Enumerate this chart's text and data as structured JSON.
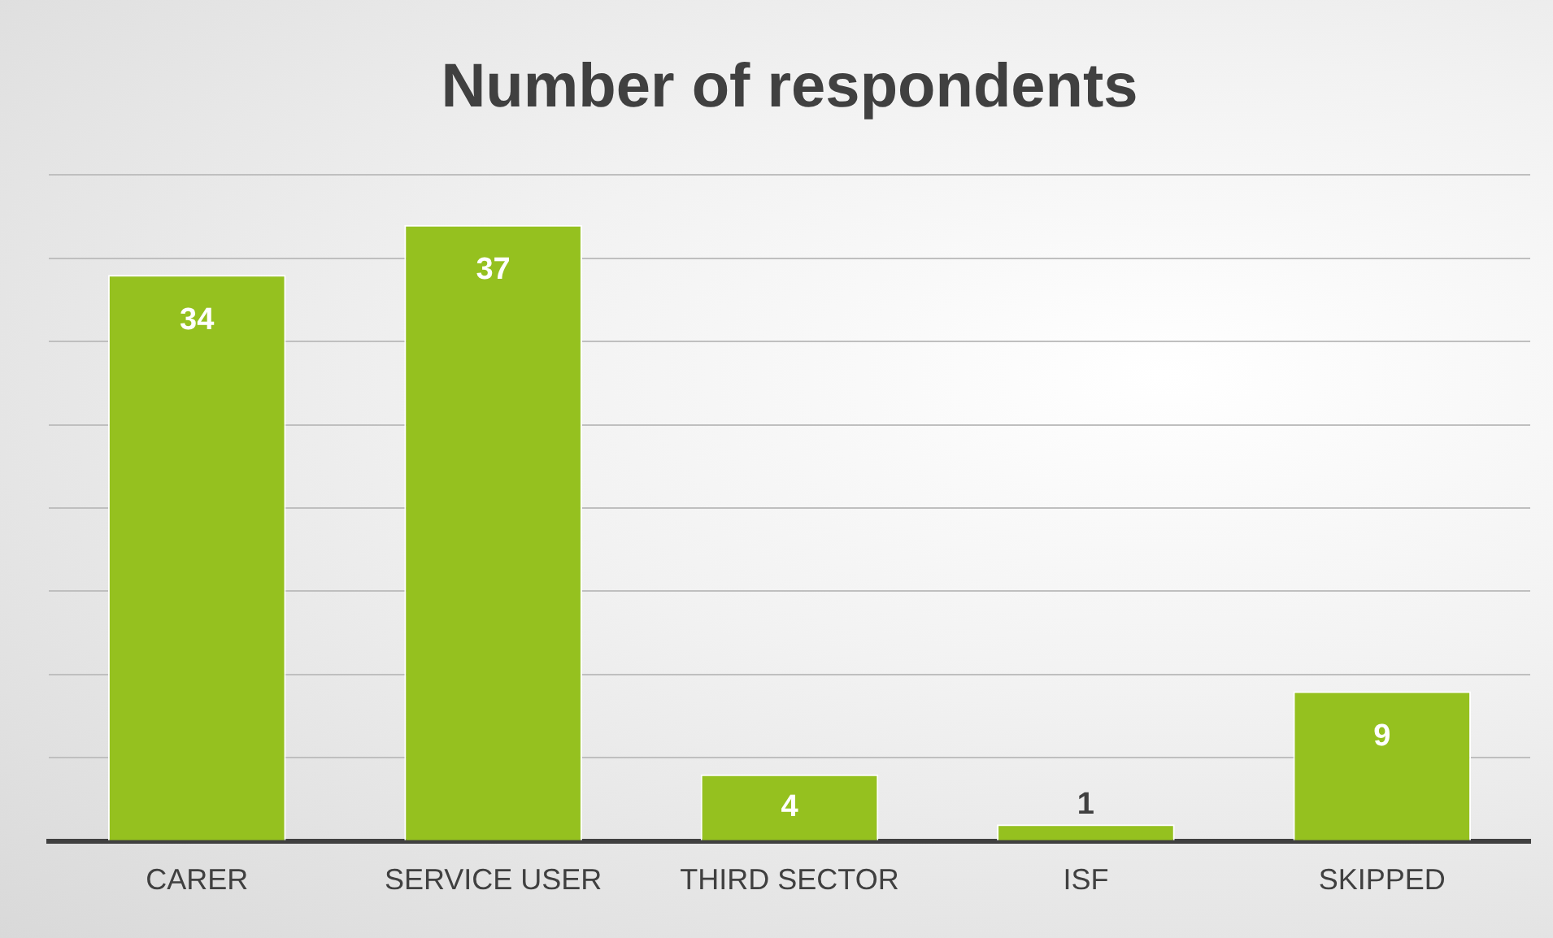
{
  "chart_data": {
    "type": "bar",
    "title": "Number of respondents",
    "categories": [
      "CARER",
      "SERVICE USER",
      "THIRD SECTOR",
      "ISF",
      "SKIPPED"
    ],
    "values": [
      34,
      37,
      4,
      1,
      9
    ],
    "color": "#95c11f",
    "ylim": [
      0,
      40
    ],
    "yticks": [
      {
        "value": 0,
        "label": null
      },
      {
        "value": 5,
        "label": null
      },
      {
        "value": 10,
        "label": null
      },
      {
        "value": 15,
        "label": null
      },
      {
        "value": 20,
        "label": null
      },
      {
        "value": 25,
        "label": null
      },
      {
        "value": 30,
        "label": null
      },
      {
        "value": 35,
        "label": null
      },
      {
        "value": 40,
        "label": null
      }
    ],
    "grid": "y",
    "tick_labels": "x",
    "data_labels": true,
    "legend": false
  }
}
